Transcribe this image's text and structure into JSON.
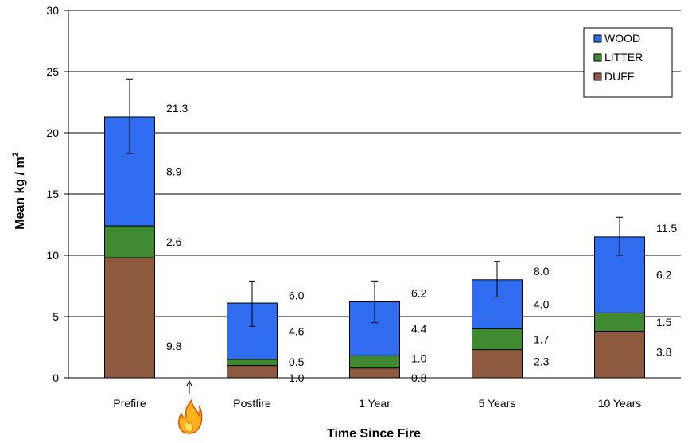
{
  "chart_data": {
    "type": "bar",
    "stacked": true,
    "categories": [
      "Prefire",
      "Postfire",
      "1 Year",
      "5 Years",
      "10 Years"
    ],
    "series": [
      {
        "name": "DUFF",
        "values": [
          9.8,
          1.0,
          0.8,
          2.3,
          3.8
        ],
        "color": "#8e5a3f"
      },
      {
        "name": "LITTER",
        "values": [
          2.6,
          0.5,
          1.0,
          1.7,
          1.5
        ],
        "color": "#3f8a2f"
      },
      {
        "name": "WOOD",
        "values": [
          8.9,
          4.6,
          4.4,
          4.0,
          6.2
        ],
        "color": "#2f6cf0"
      }
    ],
    "totals": [
      21.3,
      6.0,
      6.2,
      8.0,
      11.5
    ],
    "total_labels": [
      "21.3",
      "6.0",
      "6.2",
      "8.0",
      "11.5"
    ],
    "segment_labels": {
      "DUFF": [
        "9.8",
        "1.0",
        "0.8",
        "2.3",
        "3.8"
      ],
      "LITTER": [
        "2.6",
        "0.5",
        "1.0",
        "1.7",
        "1.5"
      ],
      "WOOD": [
        "8.9",
        "4.6",
        "4.4",
        "4.0",
        "6.2"
      ]
    },
    "error_bars": [
      {
        "low": 18.3,
        "high": 24.4
      },
      {
        "low": 4.2,
        "high": 7.9
      },
      {
        "low": 4.5,
        "high": 7.9
      },
      {
        "low": 6.6,
        "high": 9.5
      },
      {
        "low": 10.0,
        "high": 13.1
      }
    ],
    "xlabel": "Time Since Fire",
    "ylabel": "Mean kg / m",
    "ylabel_superscript": "2",
    "ylim": [
      0,
      30
    ],
    "yticks": [
      0,
      5,
      10,
      15,
      20,
      25,
      30
    ],
    "ytick_labels": [
      "0",
      "5",
      "10",
      "15",
      "20",
      "25",
      "30"
    ],
    "grid": true,
    "legend": {
      "placement": "top-right",
      "order": [
        "WOOD",
        "LITTER",
        "DUFF"
      ]
    },
    "annotations": [
      {
        "type": "fire-icon-with-arrow",
        "between": [
          "Prefire",
          "Postfire"
        ]
      }
    ]
  }
}
